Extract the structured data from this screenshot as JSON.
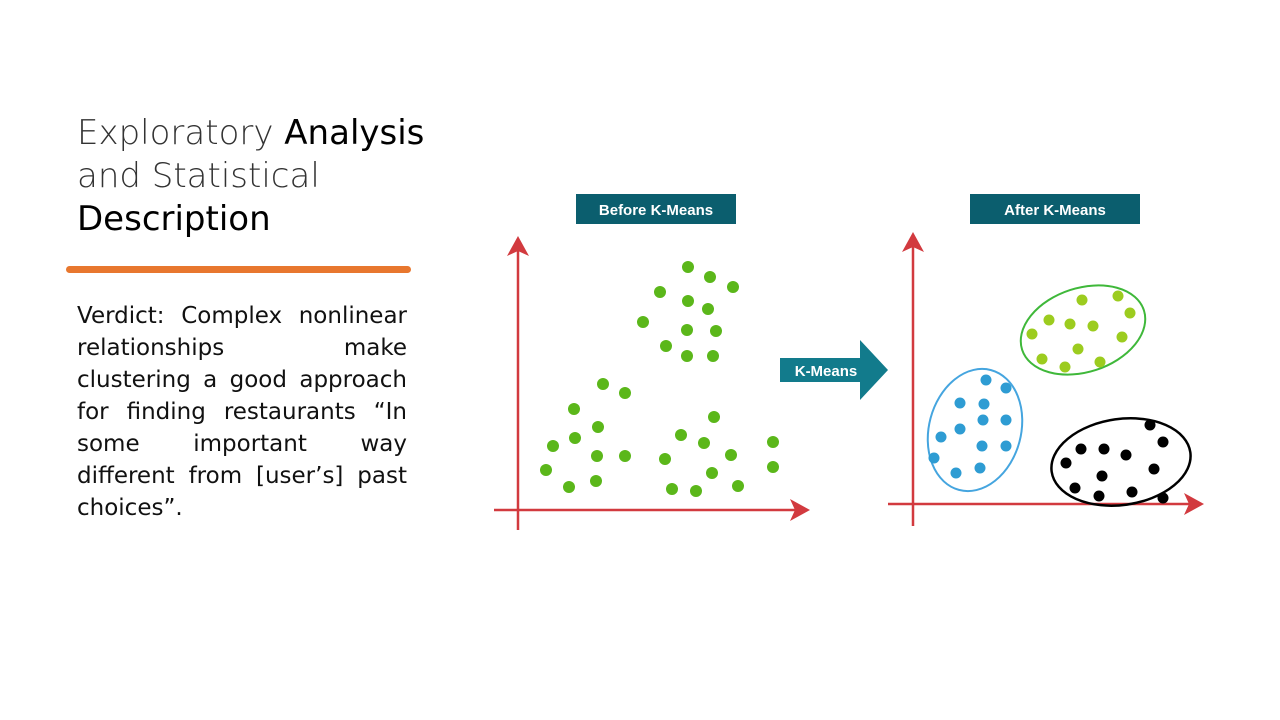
{
  "slide": {
    "title_part1": "Exploratory ",
    "title_part2": "Analysis",
    "title_part3": "and Statistical",
    "title_part4": "Description",
    "verdict": "Verdict: Complex nonlinear relationships make clustering a good approach for finding restaurants “In some important way different from [user’s] past choices”."
  },
  "diagram": {
    "before_label": "Before K-Means",
    "after_label": "After K-Means",
    "arrow_label": "K-Means",
    "colors": {
      "label_bg": "#0b5e6e",
      "arrow_bg": "#127b8c",
      "axis": "#d23a3f",
      "accent": "#e8772e",
      "green_points": "#5bb71a",
      "yellowgreen_points": "#9ccc1f",
      "blue_points": "#2e9cd3",
      "black_points": "#000000",
      "green_ellipse": "#3fb83a",
      "blue_ellipse": "#45a5df",
      "black_ellipse": "#000000"
    }
  }
}
